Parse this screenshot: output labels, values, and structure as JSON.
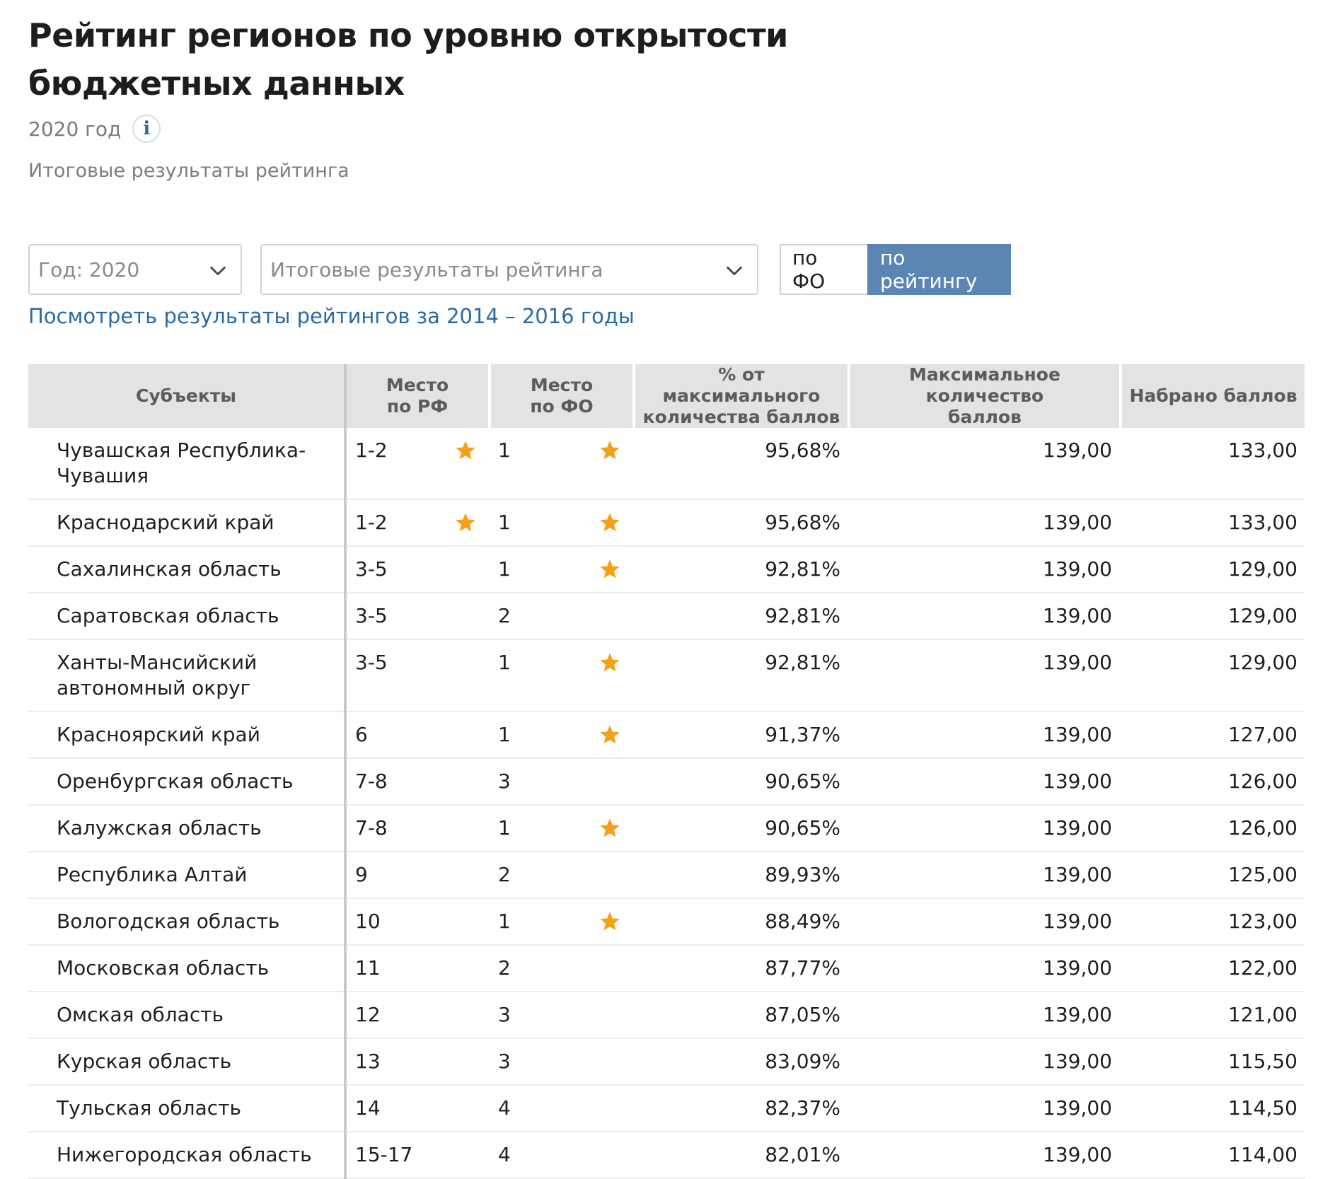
{
  "page": {
    "title_line1": "Рейтинг регионов по уровню открытости",
    "title_line2": "бюджетных данных",
    "year": "2020 год",
    "info_icon_glyph": "i",
    "subtitle": "Итоговые результаты рейтинга"
  },
  "filters": {
    "year_select": "Год: 2020",
    "type_select": "Итоговые результаты рейтинга",
    "toggle_fo": "по ФО",
    "toggle_rating": "по рейтингу",
    "active_toggle": "по рейтингу"
  },
  "archive_link": "Посмотреть результаты рейтингов за 2014 – 2016 годы",
  "colors": {
    "accent": "#5b86b4",
    "link": "#2a6aa3",
    "star": "#f5a017",
    "header_bg": "#e3e3e3"
  },
  "table": {
    "headers": {
      "subject": "Субъекты",
      "rf_place_1": "Место",
      "rf_place_2": "по РФ",
      "fo_place_1": "Место",
      "fo_place_2": "по ФО",
      "percent_1": "% от максимального",
      "percent_2": "количества баллов",
      "max_1": "Максимальное количество",
      "max_2": "баллов",
      "scored": "Набрано баллов"
    },
    "rows": [
      {
        "name": "Чувашская Республика-Чувашия",
        "rf": "1-2",
        "rf_star": true,
        "fo": "1",
        "fo_star": true,
        "pct": "95,68%",
        "max": "139,00",
        "score": "133,00"
      },
      {
        "name": "Краснодарский край",
        "rf": "1-2",
        "rf_star": true,
        "fo": "1",
        "fo_star": true,
        "pct": "95,68%",
        "max": "139,00",
        "score": "133,00"
      },
      {
        "name": "Сахалинская область",
        "rf": "3-5",
        "rf_star": false,
        "fo": "1",
        "fo_star": true,
        "pct": "92,81%",
        "max": "139,00",
        "score": "129,00"
      },
      {
        "name": "Саратовская область",
        "rf": "3-5",
        "rf_star": false,
        "fo": "2",
        "fo_star": false,
        "pct": "92,81%",
        "max": "139,00",
        "score": "129,00"
      },
      {
        "name": "Ханты-Мансийский автономный округ",
        "rf": "3-5",
        "rf_star": false,
        "fo": "1",
        "fo_star": true,
        "pct": "92,81%",
        "max": "139,00",
        "score": "129,00"
      },
      {
        "name": "Красноярский край",
        "rf": "6",
        "rf_star": false,
        "fo": "1",
        "fo_star": true,
        "pct": "91,37%",
        "max": "139,00",
        "score": "127,00"
      },
      {
        "name": "Оренбургская область",
        "rf": "7-8",
        "rf_star": false,
        "fo": "3",
        "fo_star": false,
        "pct": "90,65%",
        "max": "139,00",
        "score": "126,00"
      },
      {
        "name": "Калужская область",
        "rf": "7-8",
        "rf_star": false,
        "fo": "1",
        "fo_star": true,
        "pct": "90,65%",
        "max": "139,00",
        "score": "126,00"
      },
      {
        "name": "Республика Алтай",
        "rf": "9",
        "rf_star": false,
        "fo": "2",
        "fo_star": false,
        "pct": "89,93%",
        "max": "139,00",
        "score": "125,00"
      },
      {
        "name": "Вологодская область",
        "rf": "10",
        "rf_star": false,
        "fo": "1",
        "fo_star": true,
        "pct": "88,49%",
        "max": "139,00",
        "score": "123,00"
      },
      {
        "name": "Московская область",
        "rf": "11",
        "rf_star": false,
        "fo": "2",
        "fo_star": false,
        "pct": "87,77%",
        "max": "139,00",
        "score": "122,00"
      },
      {
        "name": "Омская область",
        "rf": "12",
        "rf_star": false,
        "fo": "3",
        "fo_star": false,
        "pct": "87,05%",
        "max": "139,00",
        "score": "121,00"
      },
      {
        "name": "Курская область",
        "rf": "13",
        "rf_star": false,
        "fo": "3",
        "fo_star": false,
        "pct": "83,09%",
        "max": "139,00",
        "score": "115,50"
      },
      {
        "name": "Тульская область",
        "rf": "14",
        "rf_star": false,
        "fo": "4",
        "fo_star": false,
        "pct": "82,37%",
        "max": "139,00",
        "score": "114,50"
      },
      {
        "name": "Нижегородская область",
        "rf": "15-17",
        "rf_star": false,
        "fo": "4",
        "fo_star": false,
        "pct": "82,01%",
        "max": "139,00",
        "score": "114,00"
      }
    ]
  }
}
